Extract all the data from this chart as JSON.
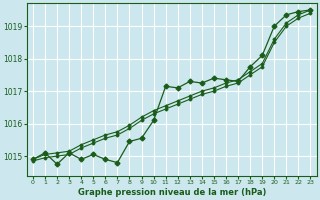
{
  "title": "Graphe pression niveau de la mer (hPa)",
  "bg_color": "#cce8ee",
  "grid_color": "#ffffff",
  "line_color": "#1a5c1a",
  "xmin": -0.5,
  "xmax": 23.5,
  "ymin": 1014.4,
  "ymax": 1019.7,
  "yticks": [
    1015,
    1016,
    1017,
    1018,
    1019
  ],
  "xticks": [
    0,
    1,
    2,
    3,
    4,
    5,
    6,
    7,
    8,
    9,
    10,
    11,
    12,
    13,
    14,
    15,
    16,
    17,
    18,
    19,
    20,
    21,
    22,
    23
  ],
  "zigzag_x": [
    0,
    1,
    2,
    3,
    4,
    5,
    6,
    7,
    8,
    9,
    10,
    11,
    12,
    13,
    14,
    15,
    16,
    17,
    18,
    19,
    20,
    21,
    22,
    23
  ],
  "zigzag_y": [
    1014.9,
    1015.1,
    1014.75,
    1015.1,
    1014.9,
    1015.05,
    1014.9,
    1014.8,
    1015.45,
    1015.55,
    1016.1,
    1017.15,
    1017.1,
    1017.3,
    1017.25,
    1017.4,
    1017.35,
    1017.3,
    1017.75,
    1018.1,
    1019.0,
    1019.35,
    1019.45,
    1019.5
  ],
  "upper_line_x": [
    0,
    1,
    2,
    3,
    4,
    5,
    6,
    7,
    8,
    9,
    10,
    11,
    12,
    13,
    14,
    15,
    16,
    17,
    18,
    19,
    20,
    21,
    22,
    23
  ],
  "upper_line_y": [
    1014.9,
    1015.05,
    1015.1,
    1015.15,
    1015.35,
    1015.5,
    1015.65,
    1015.75,
    1015.95,
    1016.2,
    1016.4,
    1016.55,
    1016.7,
    1016.85,
    1017.0,
    1017.1,
    1017.25,
    1017.35,
    1017.6,
    1017.85,
    1018.6,
    1019.1,
    1019.35,
    1019.5
  ],
  "lower_line_x": [
    0,
    1,
    2,
    3,
    4,
    5,
    6,
    7,
    8,
    9,
    10,
    11,
    12,
    13,
    14,
    15,
    16,
    17,
    18,
    19,
    20,
    21,
    22,
    23
  ],
  "lower_line_y": [
    1014.85,
    1014.95,
    1015.0,
    1015.05,
    1015.25,
    1015.4,
    1015.55,
    1015.65,
    1015.85,
    1016.1,
    1016.3,
    1016.45,
    1016.6,
    1016.75,
    1016.9,
    1017.0,
    1017.15,
    1017.25,
    1017.5,
    1017.75,
    1018.5,
    1019.0,
    1019.25,
    1019.4
  ]
}
